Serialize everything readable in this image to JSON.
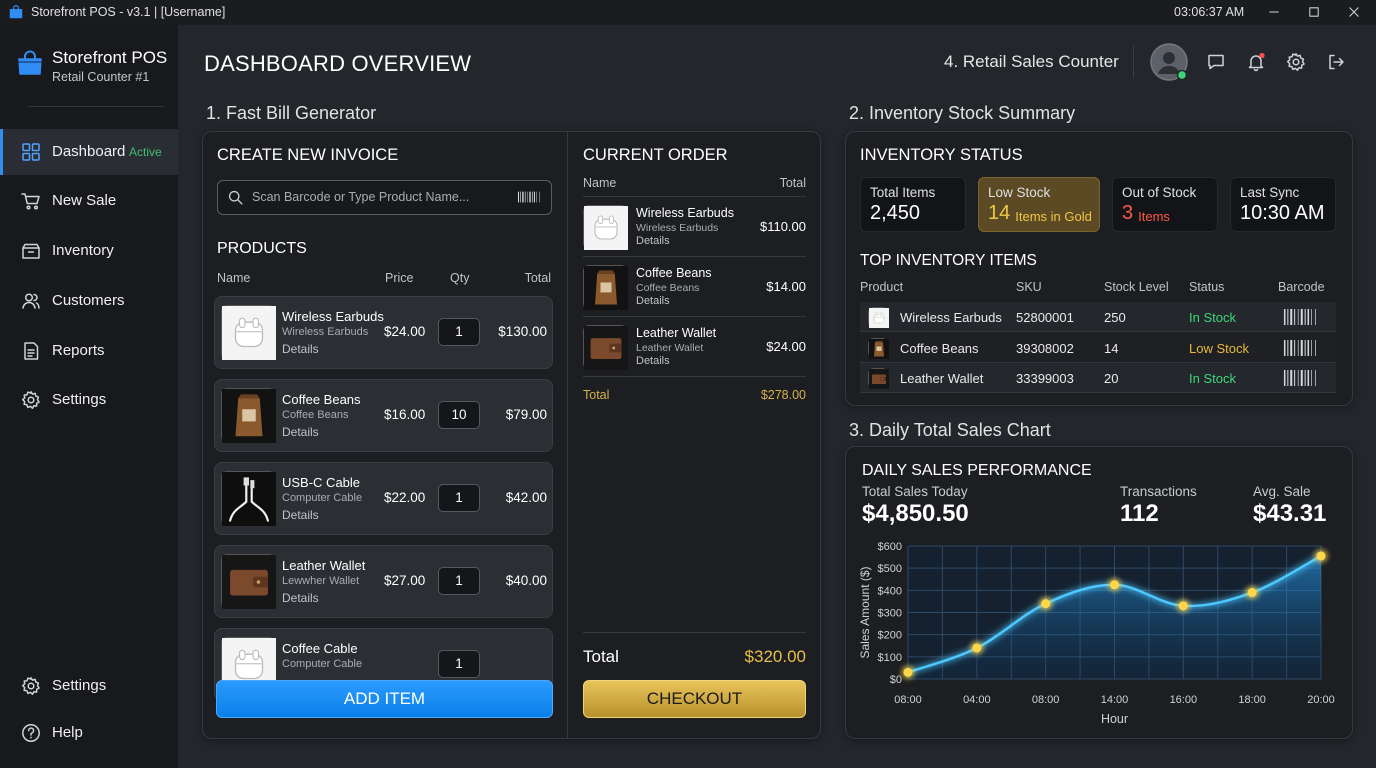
{
  "window": {
    "title": "Storefront POS - v3.1 | [Username]",
    "time": "03:06:37 AM"
  },
  "sidebar": {
    "brand": "Storefront POS",
    "subtitle": "Retail Counter #1",
    "nav": [
      {
        "label": "Dashboard",
        "badge": "Active"
      },
      {
        "label": "New Sale"
      },
      {
        "label": "Inventory"
      },
      {
        "label": "Customers"
      },
      {
        "label": "Reports"
      },
      {
        "label": "Settings"
      }
    ],
    "footer": [
      {
        "label": "Settings"
      },
      {
        "label": "Help"
      }
    ]
  },
  "header": {
    "title": "DASHBOARD OVERVIEW",
    "counter": "4. Retail Sales Counter"
  },
  "bill": {
    "section": "1. Fast Bill Generator",
    "title": "CREATE NEW INVOICE",
    "search_placeholder": "Scan Barcode or Type Product Name...",
    "products_title": "PRODUCTS",
    "columns": [
      "Name",
      "Price",
      "Qty",
      "Total"
    ],
    "products": [
      {
        "name": "Wireless Earbuds",
        "sub": "Wireless Earbuds",
        "details": "Details",
        "price": "$24.00",
        "qty": "1",
        "total": "$130.00"
      },
      {
        "name": "Coffee Beans",
        "sub": "Coffee Beans",
        "details": "Details",
        "price": "$16.00",
        "qty": "10",
        "total": "$79.00"
      },
      {
        "name": "USB-C Cable",
        "sub": "Computer Cable",
        "details": "Details",
        "price": "$22.00",
        "qty": "1",
        "total": "$42.00"
      },
      {
        "name": "Leather Wallet",
        "sub": "Lewwher Wallet",
        "details": "Details",
        "price": "$27.00",
        "qty": "1",
        "total": "$40.00"
      },
      {
        "name": "Coffee Cable",
        "sub": "Computer Cable",
        "qty": "1"
      }
    ],
    "add_button": "ADD ITEM"
  },
  "order": {
    "title": "CURRENT ORDER",
    "columns": [
      "Name",
      "Total"
    ],
    "items": [
      {
        "name": "Wireless Earbuds",
        "sub": "Wireless Earbuds",
        "details": "Details",
        "total": "$110.00"
      },
      {
        "name": "Coffee Beans",
        "sub": "Coffee Beans",
        "details": "Details",
        "total": "$14.00"
      },
      {
        "name": "Leather Wallet",
        "sub": "Leather Wallet",
        "details": "Details",
        "total": "$24.00"
      }
    ],
    "subtotal_label": "Total",
    "subtotal": "$278.00",
    "total_label": "Total",
    "total": "$320.00",
    "checkout": "CHECKOUT"
  },
  "inventory": {
    "section": "2. Inventory Stock Summary",
    "title": "INVENTORY STATUS",
    "cards": [
      {
        "label": "Total Items",
        "value": "2,450",
        "color": "#ffffff"
      },
      {
        "label": "Low Stock",
        "value": "14",
        "unit": "Items in Gold",
        "color": "#f2c648"
      },
      {
        "label": "Out of Stock",
        "value": "3",
        "unit": "Items",
        "color": "#ff5a48"
      },
      {
        "label": "Last Sync",
        "value": "10:30 AM",
        "color": "#ffffff"
      }
    ],
    "top_title": "TOP INVENTORY ITEMS",
    "columns": [
      "Product",
      "SKU",
      "Stock Level",
      "Status",
      "Barcode"
    ],
    "rows": [
      {
        "product": "Wireless Earbuds",
        "sku": "52800001",
        "stock": "250",
        "status": "In Stock",
        "status_color": "#3fd67a"
      },
      {
        "product": "Coffee Beans",
        "sku": "39308002",
        "stock": "14",
        "status": "Low Stock",
        "status_color": "#e9b93b"
      },
      {
        "product": "Leather Wallet",
        "sku": "33399003",
        "stock": "20",
        "status": "In Stock",
        "status_color": "#3fd67a"
      }
    ]
  },
  "sales": {
    "section": "3. Daily Total Sales Chart",
    "title": "DAILY SALES PERFORMANCE",
    "stats": [
      {
        "label": "Total Sales Today",
        "value": "$4,850.50"
      },
      {
        "label": "Transactions",
        "value": "112"
      },
      {
        "label": "Avg. Sale",
        "value": "$43.31"
      }
    ],
    "chart_data": {
      "type": "line",
      "y_label": "Sales Amount ($)",
      "x_label": "Hour",
      "categories": [
        "08:00",
        "04:00",
        "08:00",
        "14:00",
        "16:00",
        "18:00",
        "20:00"
      ],
      "series": [
        {
          "color": "#4cc8ff",
          "values": [
            30,
            140,
            340,
            425,
            330,
            390,
            555
          ]
        }
      ],
      "marker_color": "#ffd54a",
      "ylim": [
        0,
        600
      ],
      "yticks": [
        {
          "value": 0,
          "label": "$0"
        },
        {
          "value": 100,
          "label": "$100"
        },
        {
          "value": 200,
          "label": "$200"
        },
        {
          "value": 300,
          "label": "$300"
        },
        {
          "value": 400,
          "label": "$400"
        },
        {
          "value": 500,
          "label": "$500"
        },
        {
          "value": 600,
          "label": "$600"
        }
      ],
      "grid": true
    }
  }
}
